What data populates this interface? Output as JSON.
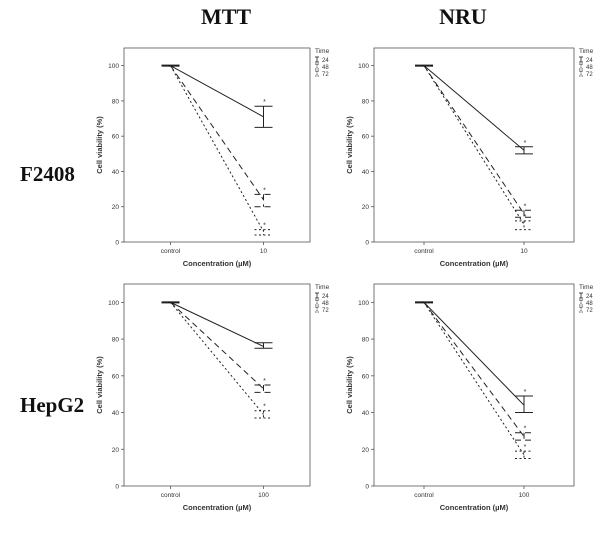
{
  "column_titles": [
    "MTT",
    "NRU"
  ],
  "row_titles": [
    "F2408",
    "HepG2"
  ],
  "chart_data": [
    {
      "type": "line",
      "assay": "MTT",
      "cell_line": "F2408",
      "categories": [
        "control",
        "10"
      ],
      "xlabel": "Concentration (µM)",
      "ylabel": "Cell viability (%)",
      "ylim": [
        0,
        110
      ],
      "yticks": [
        0,
        20,
        40,
        60,
        80,
        100
      ],
      "grid": false,
      "legend_title": "Time",
      "legend_position": "right",
      "series": [
        {
          "name": "24",
          "values": [
            100,
            71
          ],
          "err_high": [
            100,
            77
          ],
          "err_low": [
            100,
            65
          ],
          "dash": "solid",
          "sig": "*"
        },
        {
          "name": "48",
          "values": [
            100,
            24
          ],
          "err_high": [
            100,
            27
          ],
          "err_low": [
            100,
            20
          ],
          "dash": "dashed",
          "sig": "*"
        },
        {
          "name": "72",
          "values": [
            100,
            6
          ],
          "err_high": [
            100,
            7
          ],
          "err_low": [
            100,
            4
          ],
          "dash": "dotted",
          "sig": "*"
        }
      ]
    },
    {
      "type": "line",
      "assay": "NRU",
      "cell_line": "F2408",
      "categories": [
        "control",
        "10"
      ],
      "xlabel": "Concentration (µM)",
      "ylabel": "Cell viability (%)",
      "ylim": [
        0,
        110
      ],
      "yticks": [
        0,
        20,
        40,
        60,
        80,
        100
      ],
      "grid": false,
      "legend_title": "Time",
      "legend_position": "right",
      "series": [
        {
          "name": "24",
          "values": [
            100,
            52
          ],
          "err_high": [
            100,
            54
          ],
          "err_low": [
            100,
            50
          ],
          "dash": "solid",
          "sig": "*"
        },
        {
          "name": "48",
          "values": [
            100,
            16
          ],
          "err_high": [
            100,
            18
          ],
          "err_low": [
            100,
            14
          ],
          "dash": "dashed",
          "sig": "*"
        },
        {
          "name": "72",
          "values": [
            100,
            10
          ],
          "err_high": [
            100,
            12
          ],
          "err_low": [
            100,
            7
          ],
          "dash": "dotted",
          "sig": "*"
        }
      ]
    },
    {
      "type": "line",
      "assay": "MTT",
      "cell_line": "HepG2",
      "categories": [
        "control",
        "100"
      ],
      "xlabel": "Concentration (µM)",
      "ylabel": "Cell viability (%)",
      "ylim": [
        0,
        110
      ],
      "yticks": [
        0,
        20,
        40,
        60,
        80,
        100
      ],
      "grid": false,
      "legend_title": "Time",
      "legend_position": "right",
      "series": [
        {
          "name": "24",
          "values": [
            100,
            76
          ],
          "err_high": [
            100,
            78
          ],
          "err_low": [
            100,
            75
          ],
          "dash": "solid",
          "sig": ""
        },
        {
          "name": "48",
          "values": [
            100,
            53
          ],
          "err_high": [
            100,
            55
          ],
          "err_low": [
            100,
            51
          ],
          "dash": "dashed",
          "sig": "*"
        },
        {
          "name": "72",
          "values": [
            100,
            39
          ],
          "err_high": [
            100,
            41
          ],
          "err_low": [
            100,
            37
          ],
          "dash": "dotted",
          "sig": "*"
        }
      ]
    },
    {
      "type": "line",
      "assay": "NRU",
      "cell_line": "HepG2",
      "categories": [
        "control",
        "100"
      ],
      "xlabel": "Concentration (µM)",
      "ylabel": "Cell viability (%)",
      "ylim": [
        0,
        110
      ],
      "yticks": [
        0,
        20,
        40,
        60,
        80,
        100
      ],
      "grid": false,
      "legend_title": "Time",
      "legend_position": "right",
      "series": [
        {
          "name": "24",
          "values": [
            100,
            44
          ],
          "err_high": [
            100,
            49
          ],
          "err_low": [
            100,
            40
          ],
          "dash": "solid",
          "sig": "*"
        },
        {
          "name": "48",
          "values": [
            100,
            27
          ],
          "err_high": [
            100,
            29
          ],
          "err_low": [
            100,
            25
          ],
          "dash": "dashed",
          "sig": "*"
        },
        {
          "name": "72",
          "values": [
            100,
            17
          ],
          "err_high": [
            100,
            19
          ],
          "err_low": [
            100,
            15
          ],
          "dash": "dotted",
          "sig": "*"
        }
      ]
    }
  ]
}
